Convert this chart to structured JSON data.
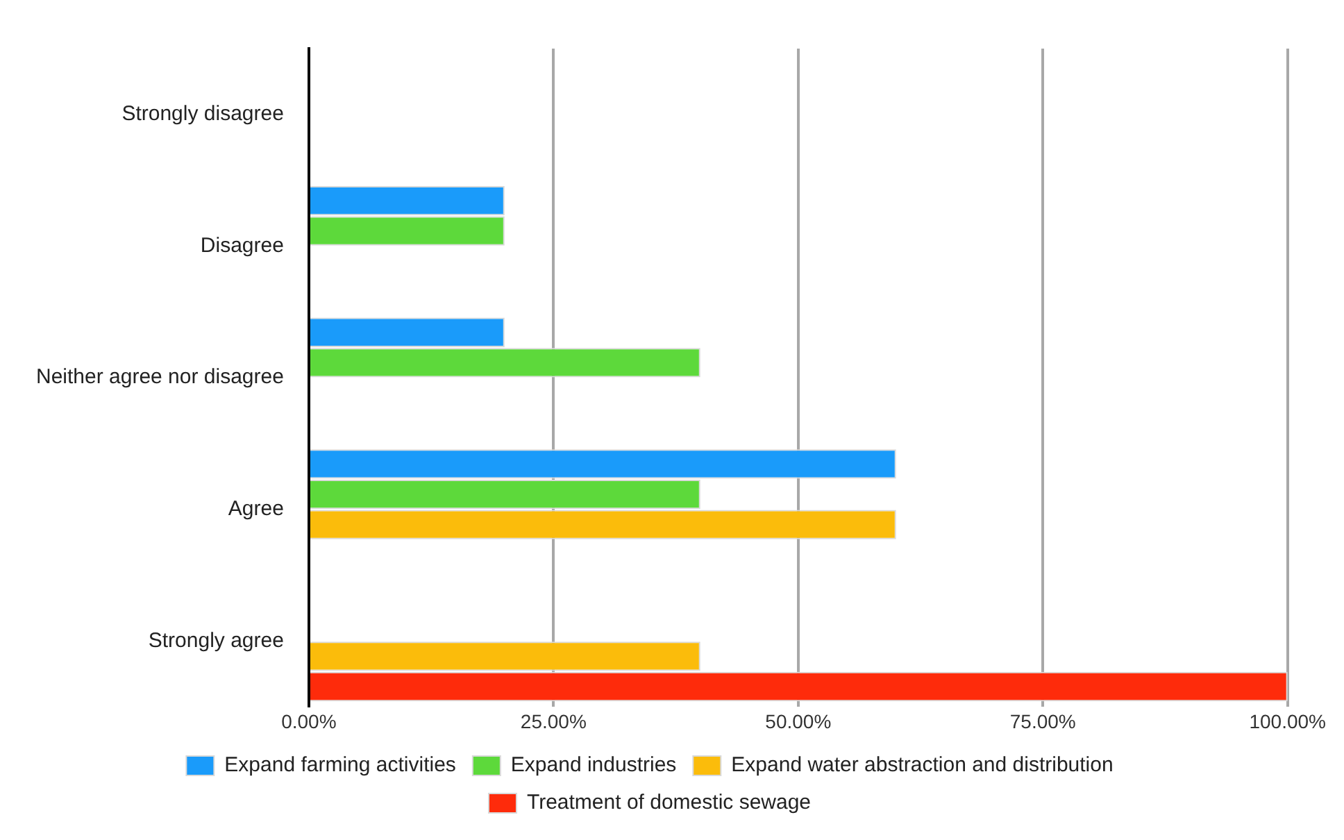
{
  "chart_data": {
    "type": "bar",
    "orientation": "horizontal",
    "categories": [
      "Strongly disagree",
      "Disagree",
      "Neither agree nor disagree",
      "Agree",
      "Strongly agree"
    ],
    "series": [
      {
        "name": "Expand farming activities",
        "color": "#1a9bfa",
        "values": [
          0,
          20,
          20,
          60,
          0
        ]
      },
      {
        "name": "Expand industries",
        "color": "#5dd93b",
        "values": [
          0,
          20,
          40,
          40,
          0
        ]
      },
      {
        "name": "Expand water abstraction and distribution",
        "color": "#fbbc0b",
        "values": [
          0,
          0,
          0,
          60,
          40
        ]
      },
      {
        "name": "Treatment of domestic sewage",
        "color": "#fe2b0b",
        "values": [
          0,
          0,
          0,
          0,
          100
        ]
      }
    ],
    "xlim": [
      0,
      100
    ],
    "xticks": [
      {
        "value": 0,
        "label": "0.00%"
      },
      {
        "value": 25,
        "label": "25.00%"
      },
      {
        "value": 50,
        "label": "50.00%"
      },
      {
        "value": 75,
        "label": "75.00%"
      },
      {
        "value": 100,
        "label": "100.00%"
      }
    ],
    "grid": "x",
    "legend": "bottom"
  }
}
